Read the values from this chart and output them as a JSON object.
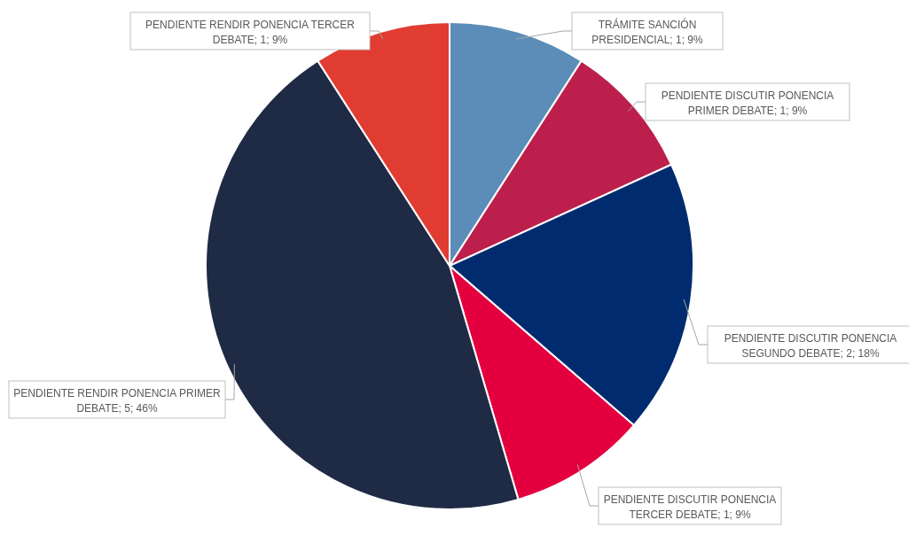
{
  "chart_data": {
    "type": "pie",
    "categories": [
      "TRÁMITE SANCIÓN PRESIDENCIAL",
      "PENDIENTE DISCUTIR PONENCIA PRIMER DEBATE",
      "PENDIENTE DISCUTIR PONENCIA SEGUNDO DEBATE",
      "PENDIENTE DISCUTIR PONENCIA TERCER DEBATE",
      "PENDIENTE RENDIR PONENCIA PRIMER DEBATE",
      "PENDIENTE RENDIR PONENCIA TERCER DEBATE"
    ],
    "values": [
      1,
      1,
      2,
      1,
      5,
      1
    ],
    "value_labels": [
      "1; 9%",
      "1; 9%",
      "2; 18%",
      "1; 9%",
      "5; 46%",
      "1; 9%"
    ],
    "colors": [
      "#5b8db8",
      "#bc1f4b",
      "#002b6e",
      "#e4003f",
      "#1f2a44",
      "#e03c31"
    ]
  }
}
